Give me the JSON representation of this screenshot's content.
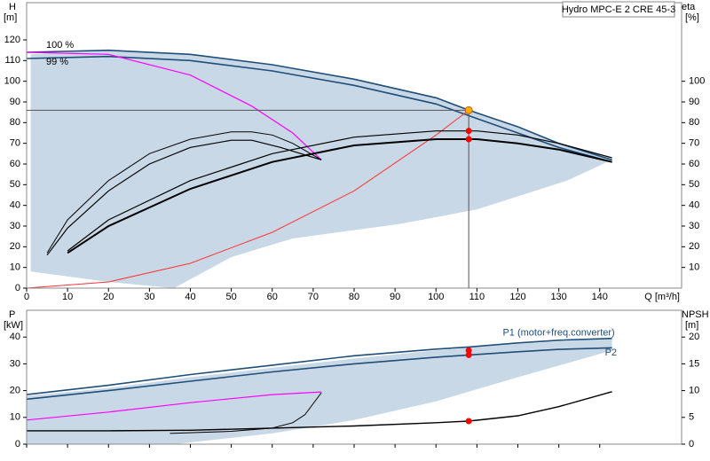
{
  "chart_data": [
    {
      "type": "line",
      "title": "Hydro MPC-E 2 CRE 45-3",
      "y_label": "H",
      "y_unit": "[m]",
      "y2_label": "eta",
      "y2_unit": "[%]",
      "x_label": "Q [m³/h]",
      "xlim": [
        0,
        160
      ],
      "xticks": [
        0,
        10,
        20,
        30,
        40,
        50,
        60,
        70,
        80,
        90,
        100,
        110,
        120,
        130,
        140
      ],
      "xtick_labels": true,
      "ylim": [
        0,
        138
      ],
      "yticks": [
        0,
        10,
        20,
        30,
        40,
        50,
        60,
        70,
        80,
        90,
        100,
        110,
        120
      ],
      "y2lim": [
        0,
        138
      ],
      "y2ticks": [
        10,
        20,
        30,
        40,
        50,
        60,
        70,
        80,
        90,
        100
      ],
      "series": [
        {
          "fill": true,
          "color": "#c9d8e6",
          "x": [
            1,
            20,
            40,
            60,
            80,
            100,
            120,
            130,
            143,
            132,
            110,
            91,
            65,
            50,
            36,
            20,
            5,
            1
          ],
          "values": [
            113,
            115,
            113,
            108,
            101,
            92,
            78,
            70,
            62,
            52,
            38,
            31,
            24,
            15,
            0,
            3,
            7,
            8
          ]
        },
        {
          "label": "100 %",
          "color": "#1f4e79",
          "width": 1.6,
          "x": [
            0,
            20,
            40,
            60,
            80,
            100,
            108,
            120,
            130,
            143
          ],
          "values": [
            114,
            115,
            113,
            108,
            101,
            92,
            86,
            78,
            70,
            62
          ]
        },
        {
          "label": "99 %",
          "color": "#1f4e79",
          "width": 1.6,
          "x": [
            0,
            20,
            40,
            60,
            80,
            100,
            110,
            120,
            130,
            143
          ],
          "values": [
            111,
            112,
            110,
            105,
            98,
            89,
            82,
            75,
            68,
            61
          ]
        },
        {
          "color": "#ff00ff",
          "width": 1.2,
          "x": [
            0,
            20,
            40,
            55,
            65,
            72
          ],
          "values": [
            114,
            113,
            103,
            88,
            75,
            62
          ]
        },
        {
          "color": "#ff3333",
          "width": 1,
          "x": [
            0,
            20,
            40,
            60,
            80,
            100,
            108
          ],
          "values": [
            0,
            3,
            12,
            27,
            47,
            74,
            86
          ]
        },
        {
          "axis": "y2",
          "color": "#000000",
          "width": 1,
          "x": [
            5,
            10,
            20,
            30,
            40,
            50,
            55,
            60,
            65,
            72
          ],
          "values": [
            17,
            33,
            52,
            65,
            72,
            75.5,
            75.5,
            74,
            70,
            62
          ]
        },
        {
          "axis": "y2",
          "color": "#000000",
          "width": 1.2,
          "x": [
            5,
            10,
            20,
            30,
            40,
            50,
            55,
            62,
            72
          ],
          "values": [
            16,
            29,
            47,
            60,
            68,
            71.5,
            71.5,
            68,
            62
          ]
        },
        {
          "axis": "y2",
          "color": "#000000",
          "width": 1.2,
          "x": [
            10,
            20,
            40,
            60,
            80,
            100,
            110,
            120,
            130,
            143
          ],
          "values": [
            18,
            33,
            52,
            65,
            73,
            76,
            76,
            74,
            70,
            63
          ]
        },
        {
          "axis": "y2",
          "color": "#000000",
          "width": 2,
          "x": [
            10,
            20,
            40,
            60,
            80,
            100,
            110,
            120,
            130,
            143
          ],
          "values": [
            17,
            30,
            48,
            61,
            69,
            72,
            72,
            70,
            67,
            61
          ]
        }
      ],
      "operating_point": {
        "x": 108,
        "y": 86,
        "color": "#ffb000"
      },
      "points": [
        {
          "x": 108,
          "y": 76,
          "color": "#ff0000",
          "axis": "y2"
        },
        {
          "x": 108,
          "y": 72,
          "color": "#ff0000",
          "axis": "y2"
        }
      ]
    },
    {
      "type": "line",
      "y_label": "P",
      "y_unit": "[kW]",
      "y2_label": "NPSH",
      "y2_unit": "[m]",
      "xlim": [
        0,
        160
      ],
      "xticks": [
        0,
        10,
        20,
        30,
        40,
        50,
        60,
        70,
        80,
        90,
        100,
        110,
        120,
        130,
        140
      ],
      "xtick_labels": false,
      "ylim": [
        0,
        50
      ],
      "yticks": [
        0,
        10,
        20,
        30,
        40
      ],
      "y2lim": [
        0,
        25
      ],
      "y2ticks": [
        0,
        5,
        10,
        15,
        20
      ],
      "series": [
        {
          "fill": true,
          "color": "#c9d8e6",
          "x": [
            0,
            20,
            40,
            60,
            80,
            100,
            120,
            143,
            143,
            120,
            100,
            80,
            60,
            36,
            0
          ],
          "values": [
            18,
            21,
            25,
            28.5,
            32,
            35,
            37.5,
            39.5,
            35,
            25,
            16,
            9,
            4,
            0,
            0
          ]
        },
        {
          "name": "P1 (motor+freq.converter)",
          "color": "#1f4e79",
          "width": 1.6,
          "x": [
            0,
            20,
            40,
            60,
            80,
            100,
            108,
            120,
            130,
            143
          ],
          "values": [
            18.5,
            22,
            26,
            29.5,
            33,
            35.5,
            36.3,
            37.8,
            38.8,
            39.5
          ]
        },
        {
          "name": "P2",
          "color": "#1f4e79",
          "width": 1.6,
          "x": [
            0,
            20,
            40,
            60,
            80,
            100,
            108,
            120,
            130,
            143
          ],
          "values": [
            16.8,
            20,
            23.5,
            27,
            30,
            32.5,
            33.3,
            34.5,
            35.4,
            36
          ]
        },
        {
          "color": "#ff00ff",
          "width": 1.2,
          "x": [
            0,
            20,
            40,
            60,
            72
          ],
          "values": [
            9,
            12,
            15.5,
            18.5,
            19.5
          ]
        },
        {
          "axis": "y2",
          "color": "#000000",
          "width": 1,
          "x": [
            35,
            50,
            60,
            65,
            68,
            72
          ],
          "values": [
            2,
            2.4,
            3,
            4,
            5.5,
            9.6
          ]
        },
        {
          "axis": "y2",
          "color": "#000000",
          "width": 1.4,
          "x": [
            0,
            20,
            40,
            60,
            80,
            100,
            108,
            120,
            130,
            143
          ],
          "values": [
            2.5,
            2.5,
            2.6,
            3,
            3.4,
            4,
            4.3,
            5.3,
            7,
            9.8
          ]
        }
      ],
      "points": [
        {
          "x": 108,
          "y": 35,
          "color": "#ff0000"
        },
        {
          "x": 108,
          "y": 33.3,
          "color": "#ff0000"
        },
        {
          "x": 108,
          "y": 4.3,
          "color": "#ff0000",
          "axis": "y2"
        }
      ]
    }
  ]
}
